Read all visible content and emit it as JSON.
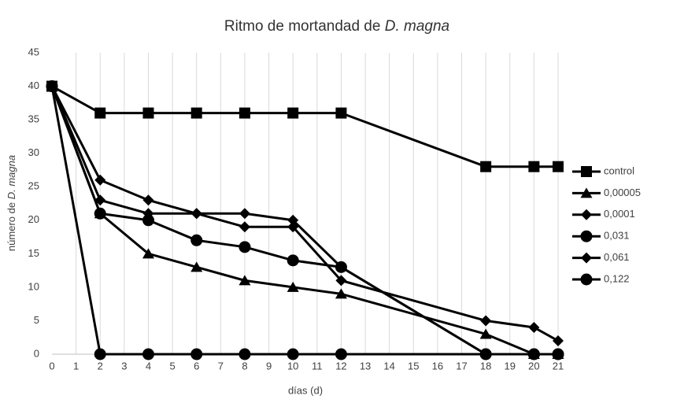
{
  "chart_data": {
    "type": "line",
    "title": {
      "text": "Ritmo de mortandad de",
      "emphasis": "D. magna"
    },
    "x_label": "días (d)",
    "y_label": {
      "text": "número de",
      "emphasis": "D. magna"
    },
    "x": [
      0,
      2,
      4,
      6,
      8,
      10,
      12,
      18,
      20,
      21
    ],
    "xlim": [
      0,
      21
    ],
    "xticks": [
      0,
      1,
      2,
      3,
      4,
      5,
      6,
      7,
      8,
      9,
      10,
      11,
      12,
      13,
      14,
      15,
      16,
      17,
      18,
      19,
      20,
      21
    ],
    "ylim": [
      0,
      45
    ],
    "yticks": [
      0,
      5,
      10,
      15,
      20,
      25,
      30,
      35,
      40,
      45
    ],
    "grid": "x",
    "legend": "right",
    "series": [
      {
        "name": "control",
        "color": "#000000",
        "marker": "square",
        "values": [
          40,
          36,
          36,
          36,
          36,
          36,
          36,
          28,
          28,
          28
        ]
      },
      {
        "name": "0,00005",
        "color": "#000000",
        "marker": "triangle",
        "values": [
          40,
          21,
          15,
          13,
          11,
          10,
          9,
          3,
          0,
          0
        ]
      },
      {
        "name": "0,0001",
        "color": "#000000",
        "marker": "diamond",
        "values": [
          40,
          23,
          21,
          21,
          21,
          20,
          13,
          0,
          0,
          0
        ]
      },
      {
        "name": "0,031",
        "color": "#000000",
        "marker": "circle",
        "values": [
          40,
          21,
          20,
          17,
          16,
          14,
          13,
          0,
          0,
          0
        ]
      },
      {
        "name": "0,061",
        "color": "#000000",
        "marker": "diamond",
        "values": [
          40,
          26,
          23,
          21,
          19,
          19,
          11,
          5,
          4,
          2
        ]
      },
      {
        "name": "0,122",
        "color": "#000000",
        "marker": "circle",
        "values": [
          40,
          0,
          0,
          0,
          0,
          0,
          0,
          0,
          0,
          0
        ]
      }
    ]
  }
}
